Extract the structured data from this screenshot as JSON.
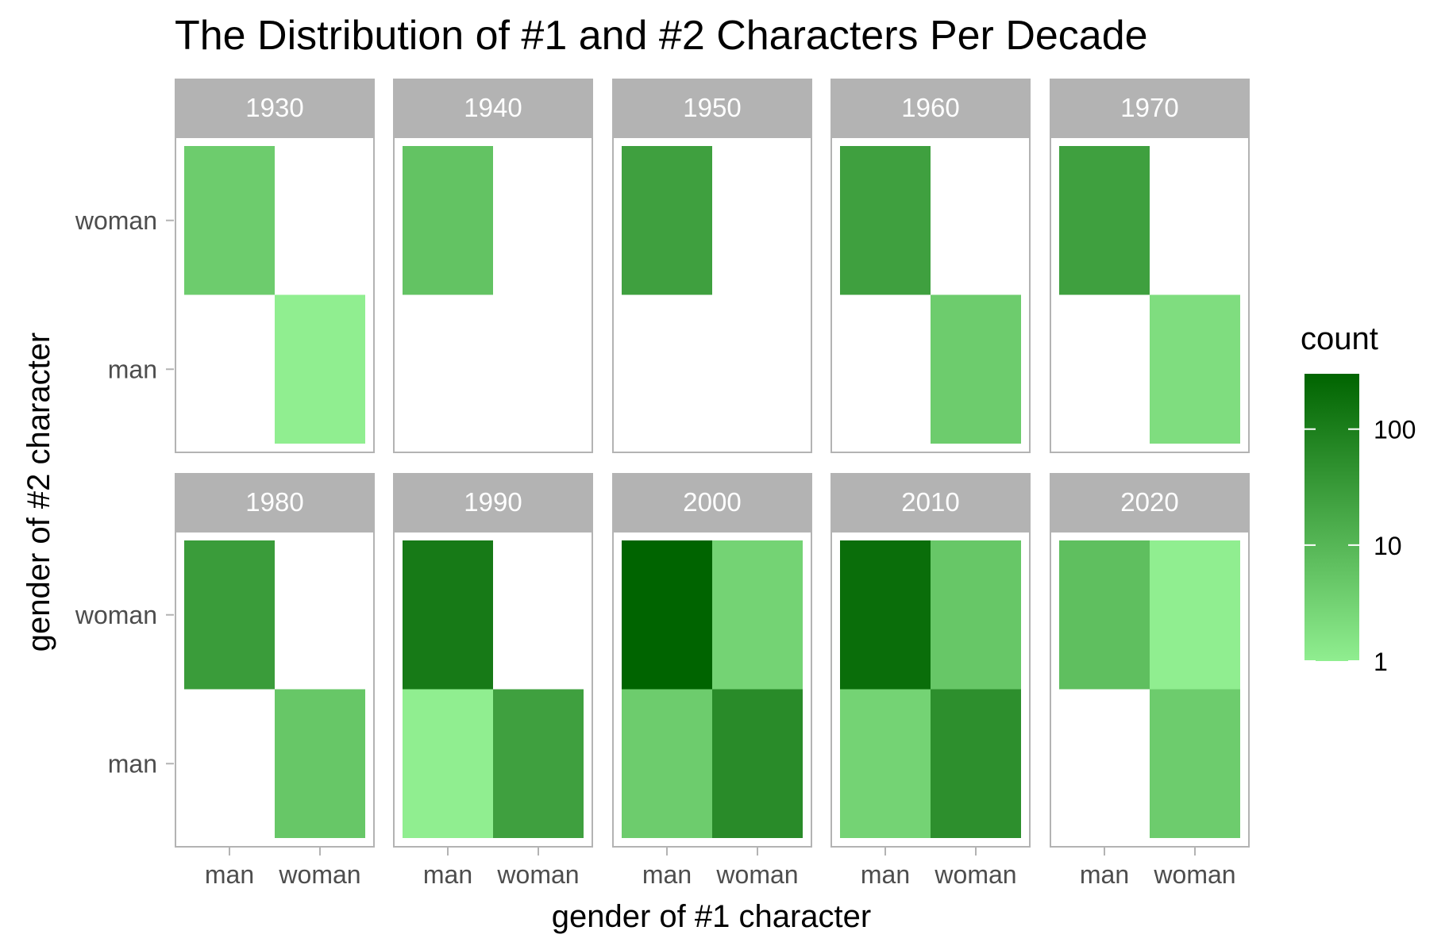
{
  "chart_data": {
    "type": "heatmap",
    "title": "The Distribution of #1 and #2 Characters Per Decade",
    "xlabel": "gender of #1 character",
    "ylabel": "gender of #2 character",
    "x_categories": [
      "man",
      "woman"
    ],
    "y_categories": [
      "woman",
      "man"
    ],
    "color_scale": {
      "type": "log10",
      "low_color": "#90EE90",
      "high_color": "#006400",
      "domain": [
        1,
        300
      ]
    },
    "legend": {
      "title": "count",
      "ticks": [
        1,
        10,
        100
      ],
      "tick_labels": [
        "1",
        "10",
        "100"
      ],
      "position": "right"
    },
    "panels": [
      {
        "decade": "1930",
        "cells": [
          {
            "x": "man",
            "y": "woman",
            "count": 4
          },
          {
            "x": "woman",
            "y": "man",
            "count": 1
          }
        ]
      },
      {
        "decade": "1940",
        "cells": [
          {
            "x": "man",
            "y": "woman",
            "count": 6
          }
        ]
      },
      {
        "decade": "1950",
        "cells": [
          {
            "x": "man",
            "y": "woman",
            "count": 25
          }
        ]
      },
      {
        "decade": "1960",
        "cells": [
          {
            "x": "man",
            "y": "woman",
            "count": 25
          },
          {
            "x": "woman",
            "y": "man",
            "count": 4
          }
        ]
      },
      {
        "decade": "1970",
        "cells": [
          {
            "x": "man",
            "y": "woman",
            "count": 25
          },
          {
            "x": "woman",
            "y": "man",
            "count": 2
          }
        ]
      },
      {
        "decade": "1980",
        "cells": [
          {
            "x": "man",
            "y": "woman",
            "count": 30
          },
          {
            "x": "woman",
            "y": "man",
            "count": 5
          }
        ]
      },
      {
        "decade": "1990",
        "cells": [
          {
            "x": "man",
            "y": "woman",
            "count": 120
          },
          {
            "x": "man",
            "y": "man",
            "count": 1
          },
          {
            "x": "woman",
            "y": "man",
            "count": 25
          }
        ]
      },
      {
        "decade": "2000",
        "cells": [
          {
            "x": "man",
            "y": "woman",
            "count": 300
          },
          {
            "x": "woman",
            "y": "woman",
            "count": 3
          },
          {
            "x": "man",
            "y": "man",
            "count": 4
          },
          {
            "x": "woman",
            "y": "man",
            "count": 60
          }
        ]
      },
      {
        "decade": "2010",
        "cells": [
          {
            "x": "man",
            "y": "woman",
            "count": 200
          },
          {
            "x": "woman",
            "y": "woman",
            "count": 5
          },
          {
            "x": "man",
            "y": "man",
            "count": 3
          },
          {
            "x": "woman",
            "y": "man",
            "count": 50
          }
        ]
      },
      {
        "decade": "2020",
        "cells": [
          {
            "x": "man",
            "y": "woman",
            "count": 7
          },
          {
            "x": "woman",
            "y": "woman",
            "count": 1
          },
          {
            "x": "woman",
            "y": "man",
            "count": 4
          }
        ]
      }
    ]
  },
  "colors": {
    "strip_background": "#b3b3b3",
    "panel_border": "#b3b3b3",
    "tick_text": "#4d4d4d"
  }
}
